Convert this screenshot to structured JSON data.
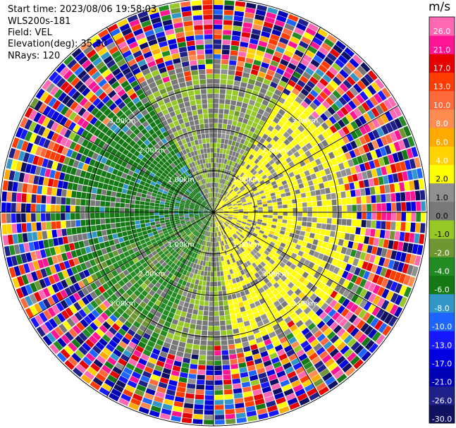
{
  "info": {
    "start_time": "Start time: 2023/08/06 19:58:03",
    "instrument": "WLS200s-181",
    "field": "Field: VEL",
    "elevation": "Elevation(deg): 35.30",
    "nrays": "NRays: 120"
  },
  "colorbar": {
    "unit": "m/s",
    "boundaries": [
      -30.0,
      -26.0,
      -21.0,
      -17.0,
      -13.0,
      -10.0,
      -8.0,
      -6.0,
      -4.0,
      -2.0,
      -1.0,
      0.0,
      1.0,
      2.0,
      4.0,
      6.0,
      8.0,
      10.0,
      13.0,
      17.0,
      21.0,
      26.0,
      30.0
    ],
    "tick_labels": [
      "-30.0",
      "-26.0",
      "-21.0",
      "-17.0",
      "-13.0",
      "-10.0",
      "-8.0",
      "-6.0",
      "-4.0",
      "-2.0",
      "-1.0",
      "0.0",
      "1.0",
      "2.0",
      "4.0",
      "6.0",
      "8.0",
      "10.0",
      "13.0",
      "17.0",
      "21.0",
      "26.0"
    ],
    "colors": [
      "#101060",
      "#20208a",
      "#0000b4",
      "#0000e0",
      "#1818ff",
      "#1e64ff",
      "#3296c8",
      "#147814",
      "#228b22",
      "#6e9632",
      "#96c828",
      "#787878",
      "#909090",
      "#ffff00",
      "#ffd200",
      "#ffaa00",
      "#ff8c50",
      "#ff6a3c",
      "#ff3c00",
      "#e60000",
      "#ff1493",
      "#ff69b4"
    ]
  },
  "chart_data": {
    "type": "heatmap",
    "projection": "polar-ppi",
    "field": "VEL",
    "units": "m/s",
    "nrays": 120,
    "ring_labels": [
      "1.00km",
      "2.00km",
      "3.00km"
    ],
    "max_range_km": 5.2,
    "azimuth_sectors": [
      {
        "from_deg": -30,
        "to_deg": 30,
        "dominant_velocity": 0.0
      },
      {
        "from_deg": 30,
        "to_deg": 170,
        "dominant_velocity": 2.5
      },
      {
        "from_deg": 170,
        "to_deg": 200,
        "dominant_velocity": 0.0
      },
      {
        "from_deg": 200,
        "to_deg": 250,
        "dominant_velocity": -2.5
      },
      {
        "from_deg": 250,
        "to_deg": 330,
        "dominant_velocity": -5.0
      }
    ]
  }
}
